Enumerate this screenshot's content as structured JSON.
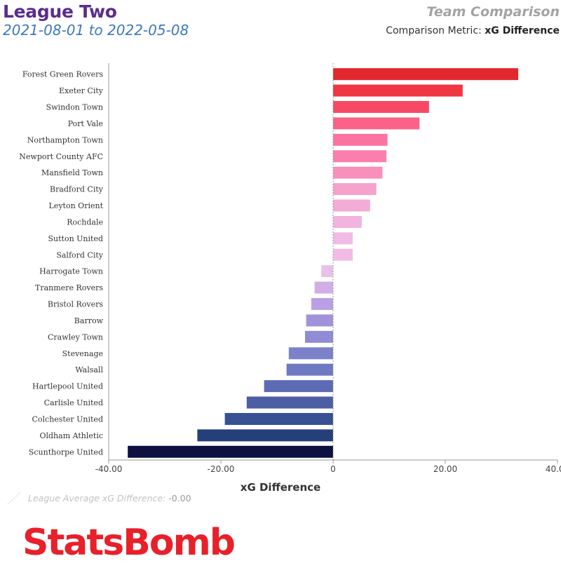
{
  "header": {
    "league": "League Two",
    "date_range": "2021-08-01 to 2022-05-08",
    "report_title": "Team Comparison",
    "metric_label": "Comparison Metric:",
    "metric_value": "xG Difference"
  },
  "chart_data": {
    "type": "bar",
    "orientation": "horizontal",
    "xlabel": "xG Difference",
    "xlim": [
      -40,
      40
    ],
    "xticks": [
      "-40.00",
      "-20.00",
      "0",
      "20.00",
      "40.00"
    ],
    "categories": [
      "Forest Green Rovers",
      "Exeter City",
      "Swindon Town",
      "Port Vale",
      "Northampton Town",
      "Newport County AFC",
      "Mansfield Town",
      "Bradford City",
      "Leyton Orient",
      "Rochdale",
      "Sutton United",
      "Salford City",
      "Harrogate Town",
      "Tranmere Rovers",
      "Bristol Rovers",
      "Barrow",
      "Crawley Town",
      "Stevenage",
      "Walsall",
      "Hartlepool United",
      "Carlisle United",
      "Colchester United",
      "Oldham Athletic",
      "Scunthorpe United"
    ],
    "values": [
      33.0,
      23.1,
      17.1,
      15.4,
      9.7,
      9.5,
      8.8,
      7.7,
      6.6,
      5.1,
      3.5,
      3.5,
      -2.1,
      -3.3,
      -3.9,
      -4.8,
      -5.0,
      -7.9,
      -8.3,
      -12.3,
      -15.4,
      -19.3,
      -24.2,
      -36.6
    ],
    "colors": [
      "#e2282f",
      "#ef3641",
      "#f74965",
      "#fb6287",
      "#fb73a1",
      "#fb7eae",
      "#f98fbb",
      "#f5a2cc",
      "#f3acd6",
      "#f1b3df",
      "#f1bbe6",
      "#f1bbe6",
      "#e9c0ea",
      "#d2aee6",
      "#baa0e2",
      "#a093da",
      "#8f8bd5",
      "#7c82ca",
      "#6e79c1",
      "#5d6bb4",
      "#4c5fa5",
      "#375192",
      "#253f79",
      "#0e1040"
    ],
    "average_line": 0
  },
  "legend": {
    "avg_label": "League Average xG Difference:",
    "avg_value": "-0.00"
  },
  "branding": {
    "logo_text": "StatsBomb",
    "logo_color": "#e8202a"
  }
}
